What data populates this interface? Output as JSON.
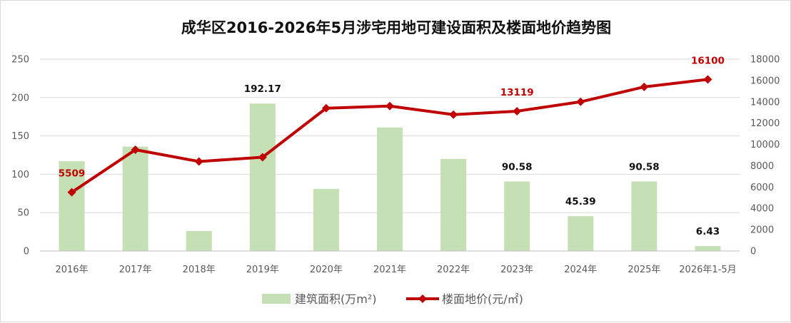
{
  "chart_data": {
    "type": "bar",
    "title": "成华区2016-2026年5月涉宅用地可建设面积及楼面地价趋势图",
    "categories": [
      "2016年",
      "2017年",
      "2018年",
      "2019年",
      "2020年",
      "2021年",
      "2022年",
      "2023年",
      "2024年",
      "2025年",
      "2026年1-5月"
    ],
    "series": [
      {
        "name": "建筑面积(万m²)",
        "type": "bar",
        "axis": "left",
        "color": "#c5e0b4",
        "values": [
          117,
          136,
          26,
          192.17,
          81,
          161,
          120,
          90.58,
          45.39,
          90.58,
          6.43
        ],
        "labels": [
          "",
          "",
          "",
          "192.17",
          "",
          "",
          "",
          "90.58",
          "45.39",
          "90.58",
          "6.43"
        ]
      },
      {
        "name": "楼面地价(元/㎡)",
        "type": "line",
        "axis": "right",
        "color": "#c00000",
        "values": [
          5509,
          9500,
          8400,
          8800,
          13400,
          13600,
          12800,
          13119,
          14000,
          15400,
          16100
        ],
        "labels": [
          "5509",
          "",
          "",
          "",
          "",
          "",
          "",
          "13119",
          "",
          "",
          "16100"
        ]
      }
    ],
    "y_left": {
      "min": 0,
      "max": 250,
      "ticks": [
        "0",
        "50",
        "100",
        "150",
        "200",
        "250"
      ]
    },
    "y_right": {
      "min": 0,
      "max": 18000,
      "ticks": [
        "0",
        "2000",
        "4000",
        "6000",
        "8000",
        "10000",
        "12000",
        "14000",
        "16000",
        "18000"
      ]
    },
    "grid": true,
    "legend_position": "bottom"
  }
}
